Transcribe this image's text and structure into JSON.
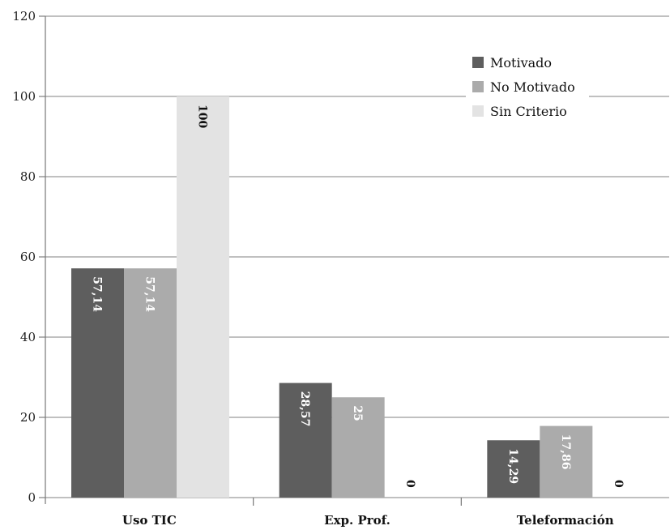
{
  "chart_data": {
    "type": "bar",
    "title": "",
    "xlabel": "",
    "ylabel": "",
    "ylim": [
      0,
      120
    ],
    "yticks": [
      0,
      20,
      40,
      60,
      80,
      100,
      120
    ],
    "grid": "horizontal",
    "legend_position": "top-right",
    "categories": [
      "Uso TIC",
      "Exp. Prof.",
      "Teleformación"
    ],
    "series": [
      {
        "name": "Motivado",
        "color": "#5e5e5e",
        "label_color": "#ffffff",
        "values": [
          57.14,
          28.57,
          14.29
        ],
        "labels": [
          "57,14",
          "28,57",
          "14,29"
        ]
      },
      {
        "name": "No Motivado",
        "color": "#ababab",
        "label_color": "#ffffff",
        "values": [
          57.14,
          25,
          17.86
        ],
        "labels": [
          "57,14",
          "25",
          "17,86"
        ]
      },
      {
        "name": "Sin Criterio",
        "color": "#e3e3e3",
        "label_color": "#111111",
        "values": [
          100,
          0,
          0
        ],
        "labels": [
          "100",
          "0",
          "0"
        ]
      }
    ]
  }
}
